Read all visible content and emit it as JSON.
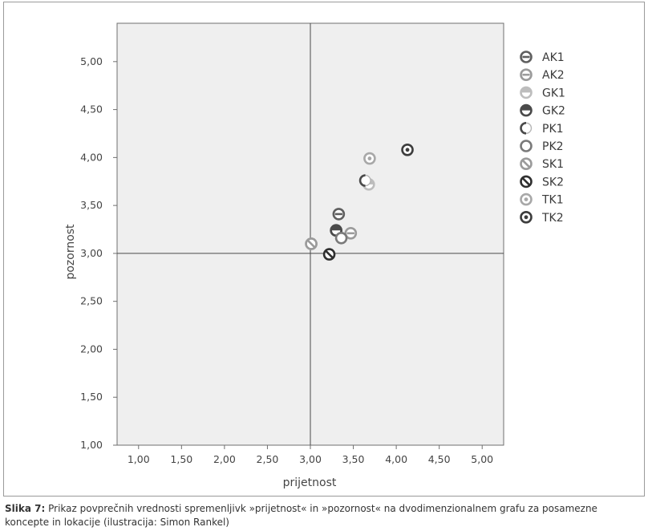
{
  "chart_data": {
    "type": "scatter",
    "xlabel": "prijetnost",
    "ylabel": "pozornost",
    "xlim": [
      0.75,
      5.25
    ],
    "ylim": [
      1.0,
      5.4
    ],
    "x_ticks": [
      "1,00",
      "1,50",
      "2,00",
      "2,50",
      "3,00",
      "3,50",
      "4,00",
      "4,50",
      "5,00"
    ],
    "y_ticks": [
      "1,00",
      "1,50",
      "2,00",
      "2,50",
      "3,00",
      "3,50",
      "4,00",
      "4,50",
      "5,00"
    ],
    "reference_lines": {
      "x": 3.0,
      "y": 3.0
    },
    "series": [
      {
        "name": "AK1",
        "style": "hbar",
        "color": "#5f5f5f",
        "x": [
          3.33,
          3.3
        ],
        "y": [
          3.41,
          3.24
        ]
      },
      {
        "name": "AK2",
        "style": "hbar",
        "color": "#9b9b9b",
        "x": [
          3.47,
          3.01
        ],
        "y": [
          3.21,
          3.1
        ]
      },
      {
        "name": "GK1",
        "style": "half-light",
        "color": "#bdbdbd",
        "x": [
          3.68
        ],
        "y": [
          3.72
        ]
      },
      {
        "name": "GK2",
        "style": "half-dark",
        "color": "#4a4a4a",
        "x": [
          3.3
        ],
        "y": [
          3.24
        ]
      },
      {
        "name": "PK1",
        "style": "crescent",
        "color": "#4a4a4a",
        "x": [
          3.64
        ],
        "y": [
          3.76
        ]
      },
      {
        "name": "PK2",
        "style": "ring",
        "color": "#7a7a7a",
        "x": [
          3.36
        ],
        "y": [
          3.16
        ]
      },
      {
        "name": "SK1",
        "style": "slash",
        "color": "#9b9b9b",
        "x": [
          3.01
        ],
        "y": [
          3.1
        ]
      },
      {
        "name": "SK2",
        "style": "slash",
        "color": "#2f2f2f",
        "x": [
          3.22
        ],
        "y": [
          2.99
        ]
      },
      {
        "name": "TK1",
        "style": "dot",
        "color": "#a8a8a8",
        "x": [
          3.69
        ],
        "y": [
          3.99
        ]
      },
      {
        "name": "TK2",
        "style": "dot",
        "color": "#3d3d3d",
        "x": [
          4.13
        ],
        "y": [
          4.08
        ]
      }
    ]
  },
  "caption": {
    "label": "Slika 7:",
    "text": "Prikaz povprečnih vrednosti spremenljivk »prijetnost« in »pozornost« na dvodimenzionalnem grafu za posamezne koncepte in lokacije (ilustracija: Simon Rankel)"
  }
}
